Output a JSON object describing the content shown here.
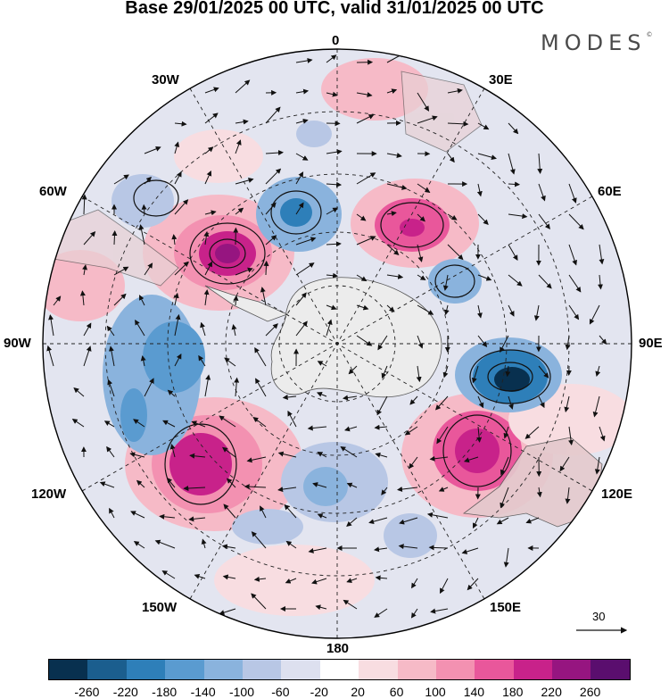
{
  "title": "Base 29/01/2025 00 UTC, valid 31/01/2025 00 UTC",
  "brand": {
    "name": "MODES",
    "mark": "©"
  },
  "longitude_labels": {
    "n0": "0",
    "e30": "30E",
    "e60": "60E",
    "e90": "90E",
    "e120": "120E",
    "e150": "150E",
    "s180": "180",
    "w150": "150W",
    "w120": "120W",
    "w90": "90W",
    "w60": "60W",
    "w30": "30W"
  },
  "wind_scale": {
    "value": "30"
  },
  "colorbar": {
    "colors": [
      "#08304f",
      "#1b5e8e",
      "#2e7fb9",
      "#5a9bd0",
      "#8ab3dd",
      "#b8c7e5",
      "#dde0ef",
      "#ffffff",
      "#f8dde1",
      "#f6bac7",
      "#f391b1",
      "#e9579b",
      "#c8228a",
      "#961580",
      "#5a0e6e"
    ],
    "ticks": [
      "-260",
      "-220",
      "-180",
      "-140",
      "-100",
      "-60",
      "-20",
      "20",
      "60",
      "100",
      "140",
      "180",
      "220",
      "260"
    ]
  }
}
